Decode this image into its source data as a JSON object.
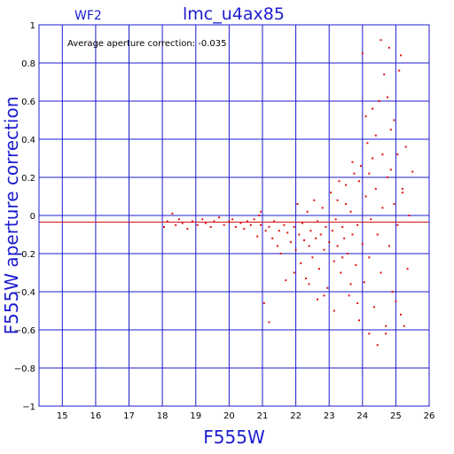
{
  "chart_data": {
    "type": "scatter",
    "title": "lmc_u4ax85",
    "subtitle": "WF2",
    "xlabel": "F555W",
    "ylabel": "F555W aperture correction",
    "annotation": "Average aperture correction: -0.035",
    "xlim": [
      14.3,
      26
    ],
    "ylim": [
      -1,
      1
    ],
    "x_ticks": [
      15,
      16,
      17,
      18,
      19,
      20,
      21,
      22,
      23,
      24,
      25,
      26
    ],
    "y_ticks": [
      -1,
      -0.8,
      -0.6,
      -0.4,
      -0.2,
      0,
      0.2,
      0.4,
      0.6,
      0.8,
      1
    ],
    "x_tick_labels": [
      "15",
      "16",
      "17",
      "18",
      "19",
      "20",
      "21",
      "22",
      "23",
      "24",
      "25",
      "26"
    ],
    "y_tick_labels": [
      "−1",
      "−0.8",
      "−0.6",
      "−0.4",
      "−0.2",
      "0",
      "0.2",
      "0.4",
      "0.6",
      "0.8",
      "1"
    ],
    "reference_lines": [
      {
        "y": 0,
        "color": "#1c1cd0"
      },
      {
        "y": -0.035,
        "color": "#d01414"
      }
    ],
    "grid": true,
    "colors": {
      "axes": "#1c1cd0",
      "points": "#e01010",
      "average_line": "#d01414"
    },
    "series": [
      {
        "marker": "dot",
        "color": "#e01010",
        "points": [
          [
            18.05,
            -0.06
          ],
          [
            18.15,
            -0.03
          ],
          [
            18.3,
            0.01
          ],
          [
            18.4,
            -0.05
          ],
          [
            18.5,
            -0.02
          ],
          [
            18.6,
            -0.04
          ],
          [
            18.75,
            -0.07
          ],
          [
            18.9,
            -0.03
          ],
          [
            19.05,
            -0.05
          ],
          [
            19.2,
            -0.02
          ],
          [
            19.3,
            -0.04
          ],
          [
            19.45,
            -0.06
          ],
          [
            19.55,
            -0.03
          ],
          [
            19.7,
            -0.01
          ],
          [
            19.85,
            -0.05
          ],
          [
            20.0,
            -0.03
          ],
          [
            20.1,
            -0.02
          ],
          [
            20.2,
            -0.06
          ],
          [
            20.35,
            -0.04
          ],
          [
            20.45,
            -0.07
          ],
          [
            20.55,
            -0.03
          ],
          [
            20.65,
            -0.05
          ],
          [
            20.75,
            -0.02
          ],
          [
            20.85,
            -0.11
          ],
          [
            20.95,
            -0.05
          ],
          [
            20.9,
            0.0
          ],
          [
            20.95,
            0.02
          ],
          [
            21.05,
            -0.46
          ],
          [
            21.1,
            -0.08
          ],
          [
            21.2,
            -0.06
          ],
          [
            21.3,
            -0.12
          ],
          [
            21.35,
            -0.03
          ],
          [
            21.45,
            -0.16
          ],
          [
            21.5,
            -0.08
          ],
          [
            21.55,
            -0.2
          ],
          [
            21.65,
            -0.05
          ],
          [
            21.75,
            -0.09
          ],
          [
            21.85,
            -0.14
          ],
          [
            21.95,
            -0.06
          ],
          [
            22.0,
            -0.18
          ],
          [
            22.05,
            0.06
          ],
          [
            22.1,
            -0.1
          ],
          [
            22.15,
            -0.25
          ],
          [
            22.2,
            -0.04
          ],
          [
            22.25,
            -0.13
          ],
          [
            22.3,
            -0.33
          ],
          [
            22.35,
            0.02
          ],
          [
            22.4,
            -0.16
          ],
          [
            22.45,
            -0.08
          ],
          [
            22.5,
            -0.22
          ],
          [
            22.55,
            0.08
          ],
          [
            22.6,
            -0.12
          ],
          [
            22.65,
            -0.03
          ],
          [
            22.7,
            -0.28
          ],
          [
            22.75,
            -0.1
          ],
          [
            22.8,
            0.04
          ],
          [
            22.85,
            -0.18
          ],
          [
            22.9,
            -0.06
          ],
          [
            22.95,
            -0.38
          ],
          [
            23.0,
            -0.14
          ],
          [
            23.05,
            0.12
          ],
          [
            23.1,
            -0.08
          ],
          [
            23.15,
            -0.24
          ],
          [
            23.2,
            -0.02
          ],
          [
            23.25,
            -0.16
          ],
          [
            23.3,
            0.18
          ],
          [
            23.35,
            -0.3
          ],
          [
            23.4,
            -0.06
          ],
          [
            23.45,
            -0.12
          ],
          [
            23.5,
            0.06
          ],
          [
            23.55,
            -0.2
          ],
          [
            23.6,
            -0.42
          ],
          [
            23.65,
            0.02
          ],
          [
            23.7,
            -0.1
          ],
          [
            23.75,
            0.22
          ],
          [
            23.8,
            -0.26
          ],
          [
            23.85,
            -0.05
          ],
          [
            23.9,
            -0.55
          ],
          [
            23.95,
            0.26
          ],
          [
            24.0,
            -0.15
          ],
          [
            24.05,
            -0.35
          ],
          [
            24.1,
            0.1
          ],
          [
            24.15,
            0.38
          ],
          [
            24.2,
            -0.22
          ],
          [
            24.25,
            -0.02
          ],
          [
            24.3,
            0.3
          ],
          [
            24.35,
            -0.48
          ],
          [
            24.4,
            0.14
          ],
          [
            24.45,
            -0.1
          ],
          [
            24.5,
            0.6
          ],
          [
            24.55,
            -0.3
          ],
          [
            24.6,
            0.04
          ],
          [
            24.65,
            0.74
          ],
          [
            24.7,
            -0.62
          ],
          [
            24.75,
            0.2
          ],
          [
            24.8,
            -0.16
          ],
          [
            24.85,
            0.45
          ],
          [
            24.9,
            -0.4
          ],
          [
            24.95,
            0.06
          ],
          [
            25.05,
            -0.05
          ],
          [
            25.1,
            0.76
          ],
          [
            25.15,
            -0.52
          ],
          [
            25.2,
            0.12
          ],
          [
            25.25,
            -0.58
          ],
          [
            25.3,
            0.36
          ],
          [
            25.4,
            0.0
          ],
          [
            25.5,
            0.23
          ],
          [
            25.35,
            -0.28
          ],
          [
            24.0,
            0.85
          ],
          [
            24.55,
            0.92
          ],
          [
            24.8,
            0.88
          ],
          [
            25.15,
            0.84
          ],
          [
            24.3,
            0.56
          ],
          [
            24.75,
            0.62
          ],
          [
            24.1,
            0.52
          ],
          [
            24.4,
            0.42
          ],
          [
            24.95,
            0.5
          ],
          [
            25.05,
            0.32
          ],
          [
            23.7,
            0.28
          ],
          [
            23.9,
            0.18
          ],
          [
            24.2,
            0.22
          ],
          [
            24.6,
            0.32
          ],
          [
            24.85,
            0.24
          ],
          [
            25.2,
            0.14
          ],
          [
            23.5,
            0.16
          ],
          [
            23.25,
            0.08
          ],
          [
            24.45,
            -0.68
          ],
          [
            24.7,
            -0.58
          ],
          [
            25.0,
            -0.45
          ],
          [
            24.2,
            -0.62
          ],
          [
            23.85,
            -0.46
          ],
          [
            23.4,
            -0.22
          ],
          [
            22.85,
            -0.42
          ],
          [
            22.4,
            -0.36
          ],
          [
            21.95,
            -0.3
          ],
          [
            21.2,
            -0.56
          ],
          [
            21.7,
            -0.34
          ],
          [
            22.65,
            -0.44
          ],
          [
            23.15,
            -0.5
          ],
          [
            23.65,
            -0.36
          ]
        ]
      }
    ]
  }
}
